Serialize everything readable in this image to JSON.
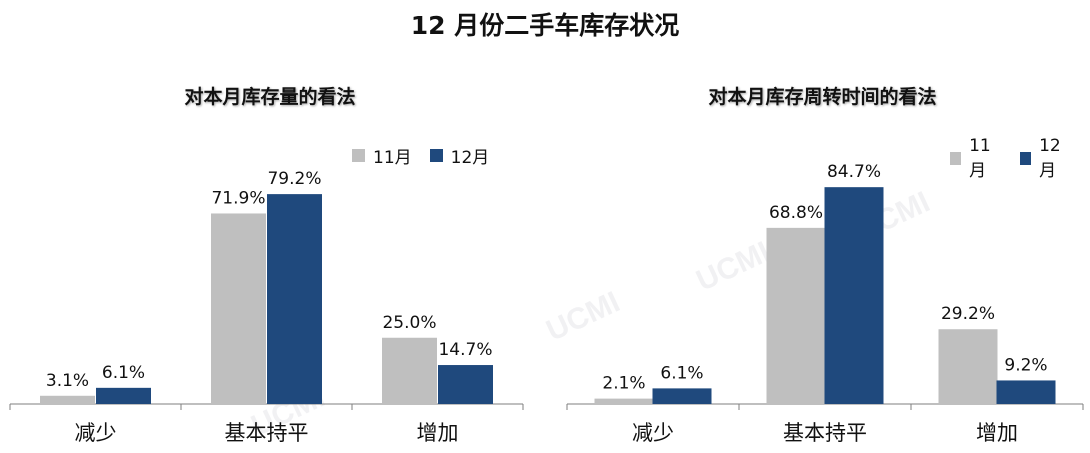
{
  "title": "12 月份二手车库存状况",
  "charts": {
    "left": {
      "title": "对本月库存量的看法",
      "legend": [
        "11月",
        "12月"
      ]
    },
    "right": {
      "title": "对本月库存周转时间的看法",
      "legend": [
        "11月",
        "12月"
      ]
    }
  },
  "watermark": "UCMI",
  "colors": {
    "nov": "#bfbfbf",
    "dec": "#1f497d",
    "axis": "#7f7f7f"
  },
  "chart_data": [
    {
      "type": "bar",
      "title": "对本月库存量的看法",
      "categories": [
        "减少",
        "基本持平",
        "增加"
      ],
      "series": [
        {
          "name": "11月",
          "values": [
            3.1,
            71.9,
            25.0
          ],
          "labels": [
            "3.1%",
            "71.9%",
            "25.0%"
          ]
        },
        {
          "name": "12月",
          "values": [
            6.1,
            79.2,
            14.7
          ],
          "labels": [
            "6.1%",
            "79.2%",
            "14.7%"
          ]
        }
      ],
      "grid": false,
      "legend_position": "top-right"
    },
    {
      "type": "bar",
      "title": "对本月库存周转时间的看法",
      "categories": [
        "减少",
        "基本持平",
        "增加"
      ],
      "series": [
        {
          "name": "11月",
          "values": [
            2.1,
            68.8,
            29.2
          ],
          "labels": [
            "2.1%",
            "68.8%",
            "29.2%"
          ]
        },
        {
          "name": "12月",
          "values": [
            6.1,
            84.7,
            9.2
          ],
          "labels": [
            "6.1%",
            "84.7%",
            "9.2%"
          ]
        }
      ],
      "grid": false,
      "legend_position": "top-right"
    }
  ]
}
